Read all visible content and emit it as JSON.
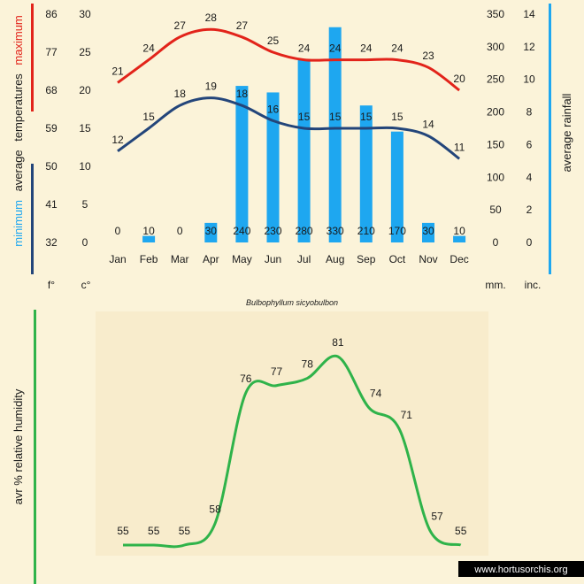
{
  "chart_data": [
    {
      "type": "bar+line",
      "title": "",
      "subtitle": "Bulbophyllum sicyobulbon",
      "categories": [
        "Jan",
        "Feb",
        "Mar",
        "Apr",
        "May",
        "Jun",
        "Jul",
        "Aug",
        "Sep",
        "Oct",
        "Nov",
        "Dec"
      ],
      "series": [
        {
          "name": "maximum",
          "kind": "line",
          "axis": "celsius",
          "color": "#e2231a",
          "values": [
            21,
            24,
            27,
            28,
            27,
            25,
            24,
            24,
            24,
            24,
            23,
            20
          ]
        },
        {
          "name": "minimum",
          "kind": "line",
          "axis": "celsius",
          "color": "#23457a",
          "values": [
            12,
            15,
            18,
            19,
            18,
            16,
            15,
            15,
            15,
            15,
            14,
            11
          ]
        },
        {
          "name": "",
          "kind": "bar",
          "axis": "mm",
          "color": "#1ea7f0",
          "values": [
            0,
            10,
            0,
            30,
            240,
            230,
            280,
            330,
            210,
            170,
            30,
            10
          ]
        }
      ],
      "axes": {
        "fahrenheit": {
          "unit": "f°",
          "ticks": [
            "32",
            "41",
            "50",
            "59",
            "68",
            "77",
            "86"
          ]
        },
        "celsius": {
          "unit": "c°",
          "ticks": [
            "0",
            "5",
            "10",
            "15",
            "20",
            "25",
            "30"
          ],
          "range": [
            0,
            30
          ]
        },
        "mm": {
          "unit": "mm.",
          "ticks": [
            "0",
            "50",
            "100",
            "150",
            "200",
            "250",
            "300",
            "350"
          ],
          "range": [
            0,
            350
          ]
        },
        "inches": {
          "unit": "inc.",
          "ticks": [
            "0",
            "2",
            "4",
            "6",
            "8",
            "10",
            "12",
            "14"
          ]
        }
      },
      "left_title": {
        "min": "minimum",
        "avg": "average",
        "temps": "temperatures",
        "max": "maximum"
      },
      "right_title": "average rainfall",
      "colors": {
        "max": "#e2231a",
        "min": "#23457a",
        "rain": "#1ea7f0",
        "rain_axis": "#1ea7f0"
      }
    },
    {
      "type": "line",
      "title": "",
      "categories": [
        "Jan",
        "Feb",
        "Mar",
        "Apr",
        "May",
        "Jun",
        "Jul",
        "Aug",
        "Sep",
        "Oct",
        "Nov",
        "Dec"
      ],
      "series": [
        {
          "name": "",
          "color": "#2fb34a",
          "values": [
            55,
            55,
            55,
            58,
            76,
            77,
            78,
            81,
            74,
            71,
            57,
            55
          ]
        }
      ],
      "ylabel": "avr % relative humidity",
      "ylim": [
        50,
        85
      ]
    }
  ],
  "watermark": "www.hortusorchis.org"
}
